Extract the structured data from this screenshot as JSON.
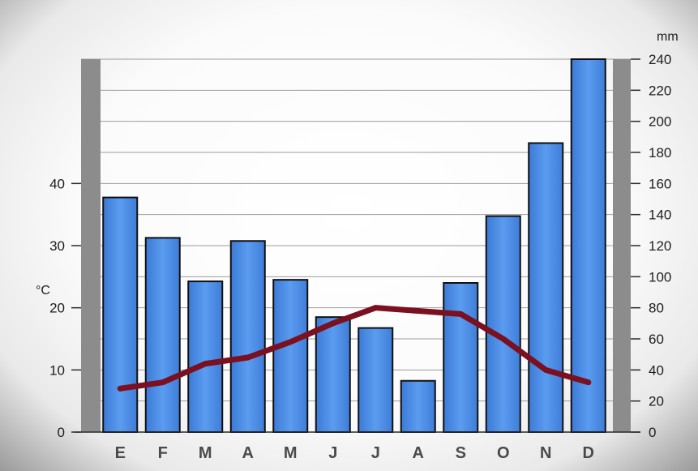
{
  "chart_data": {
    "type": "bar",
    "categories": [
      "E",
      "F",
      "M",
      "A",
      "M",
      "J",
      "J",
      "A",
      "S",
      "O",
      "N",
      "D"
    ],
    "series": [
      {
        "type": "bar",
        "axis": "right",
        "values": [
          151,
          125,
          97,
          123,
          98,
          74,
          67,
          33,
          96,
          139,
          186,
          240
        ]
      },
      {
        "type": "line",
        "axis": "left",
        "values": [
          7,
          8,
          11,
          12,
          14.5,
          17.5,
          20,
          19.5,
          19,
          15,
          10,
          8
        ]
      }
    ],
    "y_left": {
      "unit": "°C",
      "ticks": [
        0,
        10,
        20,
        30,
        40
      ],
      "range": [
        0,
        60
      ]
    },
    "y_right": {
      "unit": "mm",
      "ticks": [
        0,
        20,
        40,
        60,
        80,
        100,
        120,
        140,
        160,
        180,
        200,
        220,
        240
      ],
      "range": [
        0,
        240
      ]
    },
    "grid": true,
    "colors": {
      "bar": "#4d8fe6",
      "bar_edge": "#101010",
      "line": "#7a1020",
      "side_bars": "#8c8c8c"
    }
  }
}
